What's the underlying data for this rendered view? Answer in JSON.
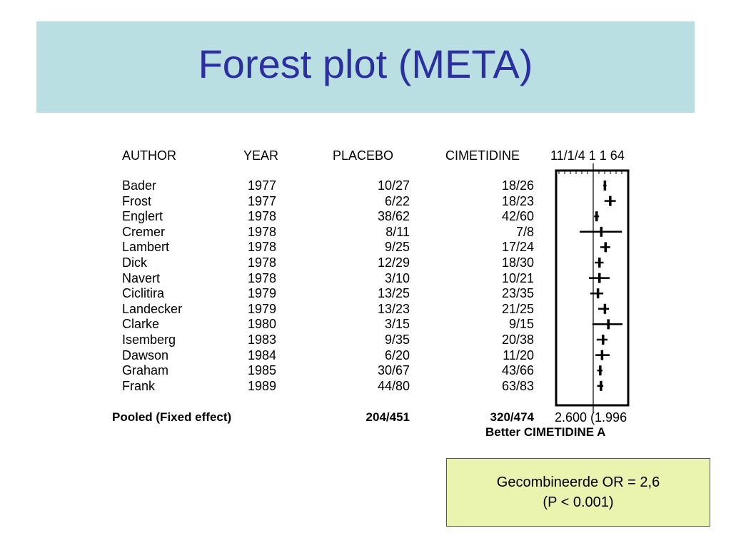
{
  "slide": {
    "title": "Forest plot (META)",
    "note_line1": "Gecombineerde OR = 2,6",
    "note_line2": "(P < 0.001)"
  },
  "colors": {
    "title_band": "#b9dfe3",
    "title_text": "#2b2fa0",
    "note_box": "#eaf4ae"
  },
  "chart_data": {
    "type": "table",
    "columns": [
      "AUTHOR",
      "YEAR",
      "PLACEBO",
      "CIMETIDINE"
    ],
    "axis_header": "11/1/4 1 1 64",
    "rows": [
      {
        "author": "Bader",
        "year": "1977",
        "placebo": "10/27",
        "cimetidine": "18/26"
      },
      {
        "author": "Frost",
        "year": "1977",
        "placebo": "6/22",
        "cimetidine": "18/23"
      },
      {
        "author": "Englert",
        "year": "1978",
        "placebo": "38/62",
        "cimetidine": "42/60"
      },
      {
        "author": "Cremer",
        "year": "1978",
        "placebo": "8/11",
        "cimetidine": "7/8"
      },
      {
        "author": "Lambert",
        "year": "1978",
        "placebo": "9/25",
        "cimetidine": "17/24"
      },
      {
        "author": "Dick",
        "year": "1978",
        "placebo": "12/29",
        "cimetidine": "18/30"
      },
      {
        "author": "Navert",
        "year": "1978",
        "placebo": "3/10",
        "cimetidine": "10/21"
      },
      {
        "author": "Ciclitira",
        "year": "1979",
        "placebo": "13/25",
        "cimetidine": "23/35"
      },
      {
        "author": "Landecker",
        "year": "1979",
        "placebo": "13/23",
        "cimetidine": "21/25"
      },
      {
        "author": "Clarke",
        "year": "1980",
        "placebo": "3/15",
        "cimetidine": "9/15"
      },
      {
        "author": "Isemberg",
        "year": "1983",
        "placebo": "9/35",
        "cimetidine": "20/38"
      },
      {
        "author": "Dawson",
        "year": "1984",
        "placebo": "6/20",
        "cimetidine": "11/20"
      },
      {
        "author": "Graham",
        "year": "1985",
        "placebo": "30/67",
        "cimetidine": "43/66"
      },
      {
        "author": "Frank",
        "year": "1989",
        "placebo": "44/80",
        "cimetidine": "63/83"
      }
    ],
    "pooled": {
      "label": "Pooled (Fixed effect)",
      "placebo": "204/451",
      "cimetidine": "320/474",
      "estimate_text": "2.600 (1.996"
    },
    "footer_label": "Better CIMETIDINE A",
    "odds_ratio": {
      "scale": "log",
      "xlim": [
        0.0625,
        64
      ],
      "reference": 1,
      "estimates": [
        {
          "or": 4.0,
          "lo": 3.3,
          "hi": 4.8
        },
        {
          "or": 7.5,
          "lo": 3.8,
          "hi": 14.5
        },
        {
          "or": 1.5,
          "lo": 1.1,
          "hi": 2.0
        },
        {
          "or": 2.6,
          "lo": 0.2,
          "hi": 30
        },
        {
          "or": 4.3,
          "lo": 2.3,
          "hi": 7.5
        },
        {
          "or": 2.1,
          "lo": 1.2,
          "hi": 3.4
        },
        {
          "or": 2.1,
          "lo": 0.6,
          "hi": 7.0
        },
        {
          "or": 1.75,
          "lo": 0.7,
          "hi": 3.3
        },
        {
          "or": 4.0,
          "lo": 1.8,
          "hi": 6.5
        },
        {
          "or": 6.0,
          "lo": 0.9,
          "hi": 32
        },
        {
          "or": 3.2,
          "lo": 1.5,
          "hi": 5.4
        },
        {
          "or": 2.85,
          "lo": 1.3,
          "hi": 7.0
        },
        {
          "or": 2.3,
          "lo": 1.6,
          "hi": 3.0
        },
        {
          "or": 2.5,
          "lo": 1.6,
          "hi": 3.3
        }
      ]
    }
  }
}
